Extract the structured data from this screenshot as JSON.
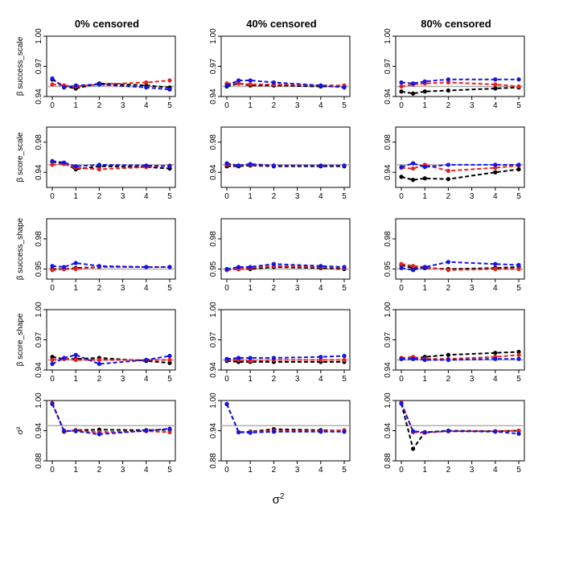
{
  "chart_data": {
    "type": "line",
    "x": [
      0,
      0.5,
      1,
      2,
      4,
      5
    ],
    "x_ticks": [
      0,
      1,
      2,
      3,
      4,
      5
    ],
    "xlim": [
      0,
      5
    ],
    "xlabel": "σ",
    "xlabel_superscript": "2",
    "column_titles": [
      "0% censored",
      "40% censored",
      "80% censored"
    ],
    "series_colors": [
      "#000000",
      "#e8211f",
      "#1414e6"
    ],
    "reference_color": "#b0b0b0",
    "reference_value": 0.95,
    "rows": [
      {
        "ylabel_prefix": "β",
        "ylabel": "success_scale",
        "ylim": [
          0.94,
          1.0
        ],
        "yticks": [
          "0.94",
          "0.97",
          "1.00"
        ],
        "panels": [
          [
            [
              0.957,
              0.95,
              0.948,
              0.953,
              0.951,
              0.949
            ],
            [
              0.952,
              0.951,
              0.95,
              0.952,
              0.954,
              0.956
            ],
            [
              0.958,
              0.949,
              0.951,
              0.952,
              0.949,
              0.947
            ]
          ],
          [
            [
              0.95,
              0.953,
              0.951,
              0.951,
              0.95,
              0.95
            ],
            [
              0.953,
              0.953,
              0.952,
              0.952,
              0.951,
              0.951
            ],
            [
              0.951,
              0.956,
              0.956,
              0.954,
              0.951,
              0.949
            ]
          ],
          [
            [
              0.945,
              0.943,
              0.945,
              0.946,
              0.948,
              0.949
            ],
            [
              0.95,
              0.952,
              0.953,
              0.954,
              0.952,
              0.95
            ],
            [
              0.954,
              0.953,
              0.955,
              0.957,
              0.957,
              0.957
            ]
          ]
        ]
      },
      {
        "ylabel_prefix": "β",
        "ylabel": "score_scale",
        "ylim": [
          0.92,
          1.0
        ],
        "yticks": [
          "0.94",
          "0.98"
        ],
        "panels": [
          [
            [
              0.954,
              0.952,
              0.944,
              0.948,
              0.947,
              0.945
            ],
            [
              0.95,
              0.951,
              0.946,
              0.944,
              0.947,
              0.949
            ],
            [
              0.955,
              0.953,
              0.948,
              0.95,
              0.949,
              0.948
            ]
          ],
          [
            [
              0.948,
              0.948,
              0.949,
              0.948,
              0.948,
              0.948
            ],
            [
              0.95,
              0.949,
              0.95,
              0.949,
              0.949,
              0.949
            ],
            [
              0.952,
              0.949,
              0.951,
              0.949,
              0.949,
              0.949
            ]
          ],
          [
            [
              0.934,
              0.93,
              0.932,
              0.931,
              0.94,
              0.944
            ],
            [
              0.946,
              0.945,
              0.95,
              0.942,
              0.946,
              0.949
            ],
            [
              0.947,
              0.952,
              0.947,
              0.95,
              0.95,
              0.95
            ]
          ]
        ]
      },
      {
        "ylabel_prefix": "β",
        "ylabel": "success_shape",
        "ylim": [
          0.94,
          1.0
        ],
        "yticks": [
          "0.95",
          "0.98"
        ],
        "panels": [
          [
            [
              0.95,
              0.95,
              0.951,
              0.952,
              0.952,
              0.952
            ],
            [
              0.949,
              0.95,
              0.95,
              0.952,
              0.952,
              0.952
            ],
            [
              0.953,
              0.952,
              0.956,
              0.953,
              0.952,
              0.952
            ]
          ],
          [
            [
              0.949,
              0.95,
              0.95,
              0.952,
              0.951,
              0.95
            ],
            [
              0.949,
              0.95,
              0.951,
              0.953,
              0.952,
              0.951
            ],
            [
              0.95,
              0.952,
              0.952,
              0.955,
              0.953,
              0.952
            ]
          ],
          [
            [
              0.954,
              0.951,
              0.951,
              0.95,
              0.951,
              0.952
            ],
            [
              0.955,
              0.953,
              0.952,
              0.949,
              0.95,
              0.95
            ],
            [
              0.951,
              0.949,
              0.952,
              0.957,
              0.955,
              0.954
            ]
          ]
        ]
      },
      {
        "ylabel_prefix": "β",
        "ylabel": "score_shape",
        "ylim": [
          0.94,
          1.0
        ],
        "yticks": [
          "0.94",
          "0.97",
          "1.00"
        ],
        "panels": [
          [
            [
              0.953,
              0.951,
              0.951,
              0.952,
              0.949,
              0.947
            ],
            [
              0.95,
              0.951,
              0.95,
              0.95,
              0.95,
              0.95
            ],
            [
              0.946,
              0.952,
              0.955,
              0.946,
              0.95,
              0.954
            ]
          ],
          [
            [
              0.949,
              0.948,
              0.948,
              0.948,
              0.948,
              0.948
            ],
            [
              0.95,
              0.95,
              0.949,
              0.95,
              0.95,
              0.95
            ],
            [
              0.951,
              0.952,
              0.952,
              0.952,
              0.953,
              0.954
            ]
          ],
          [
            [
              0.951,
              0.951,
              0.953,
              0.955,
              0.957,
              0.958
            ],
            [
              0.952,
              0.953,
              0.951,
              0.951,
              0.953,
              0.955
            ],
            [
              0.951,
              0.951,
              0.95,
              0.95,
              0.951,
              0.951
            ]
          ]
        ]
      },
      {
        "ylabel_prefix": "",
        "ylabel": "σ²",
        "ylim": [
          0.88,
          1.0
        ],
        "yticks": [
          "0.88",
          "0.94",
          "1.00"
        ],
        "panels": [
          [
            [
              0.995,
              0.938,
              0.941,
              0.942,
              0.941,
              0.942
            ],
            [
              0.995,
              0.939,
              0.94,
              0.937,
              0.939,
              0.937
            ],
            [
              0.993,
              0.94,
              0.939,
              0.933,
              0.94,
              0.944
            ]
          ],
          [
            [
              0.993,
              0.937,
              0.938,
              0.943,
              0.941,
              0.94
            ],
            [
              0.993,
              0.937,
              0.937,
              0.94,
              0.939,
              0.941
            ],
            [
              0.993,
              0.937,
              0.936,
              0.938,
              0.938,
              0.938
            ]
          ],
          [
            [
              0.994,
              0.904,
              0.937,
              0.94,
              0.939,
              0.94
            ],
            [
              0.996,
              0.937,
              0.936,
              0.939,
              0.939,
              0.94
            ],
            [
              0.994,
              0.939,
              0.937,
              0.939,
              0.938,
              0.934
            ]
          ]
        ]
      }
    ]
  }
}
